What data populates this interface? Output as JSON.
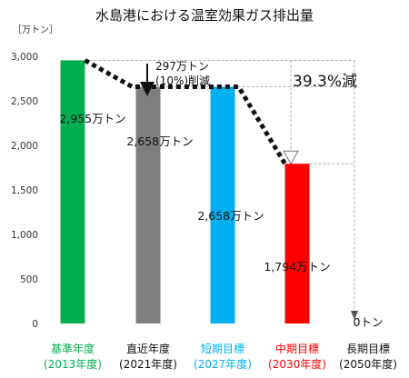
{
  "chart_data": {
    "type": "bar",
    "title": "水島港における温室効果ガス排出量",
    "unit": "［万トン］",
    "ylim": [
      0,
      3000
    ],
    "yticks": [
      "0",
      "500",
      "1,000",
      "1,500",
      "2,000",
      "2,500",
      "3,000"
    ],
    "grid": false,
    "categories": [
      {
        "line1": "基準年度",
        "line2": "(2013年度)",
        "color": "#00b050"
      },
      {
        "line1": "直近年度",
        "line2": "(2021年度)",
        "color": "#111111"
      },
      {
        "line1": "短期目標",
        "line2": "(2027年度)",
        "color": "#00b0f0"
      },
      {
        "line1": "中期目標",
        "line2": "(2030年度)",
        "color": "#ff0000"
      },
      {
        "line1": "長期目標",
        "line2": "(2050年度)",
        "color": "#111111"
      }
    ],
    "values": [
      2955,
      2658,
      2658,
      1794,
      0
    ],
    "bar_colors": [
      "#00b050",
      "#7f7f7f",
      "#00b0f0",
      "#ff0000",
      "#ffffff"
    ],
    "data_labels": [
      "2,955万トン",
      "2,658万トン",
      "2,658万トン",
      "1,794万トン",
      "0トン"
    ],
    "annotations": {
      "reduction_line1": "297万トン",
      "reduction_line2": "(10%)削減",
      "percent_reduction": "39.3%減"
    }
  }
}
